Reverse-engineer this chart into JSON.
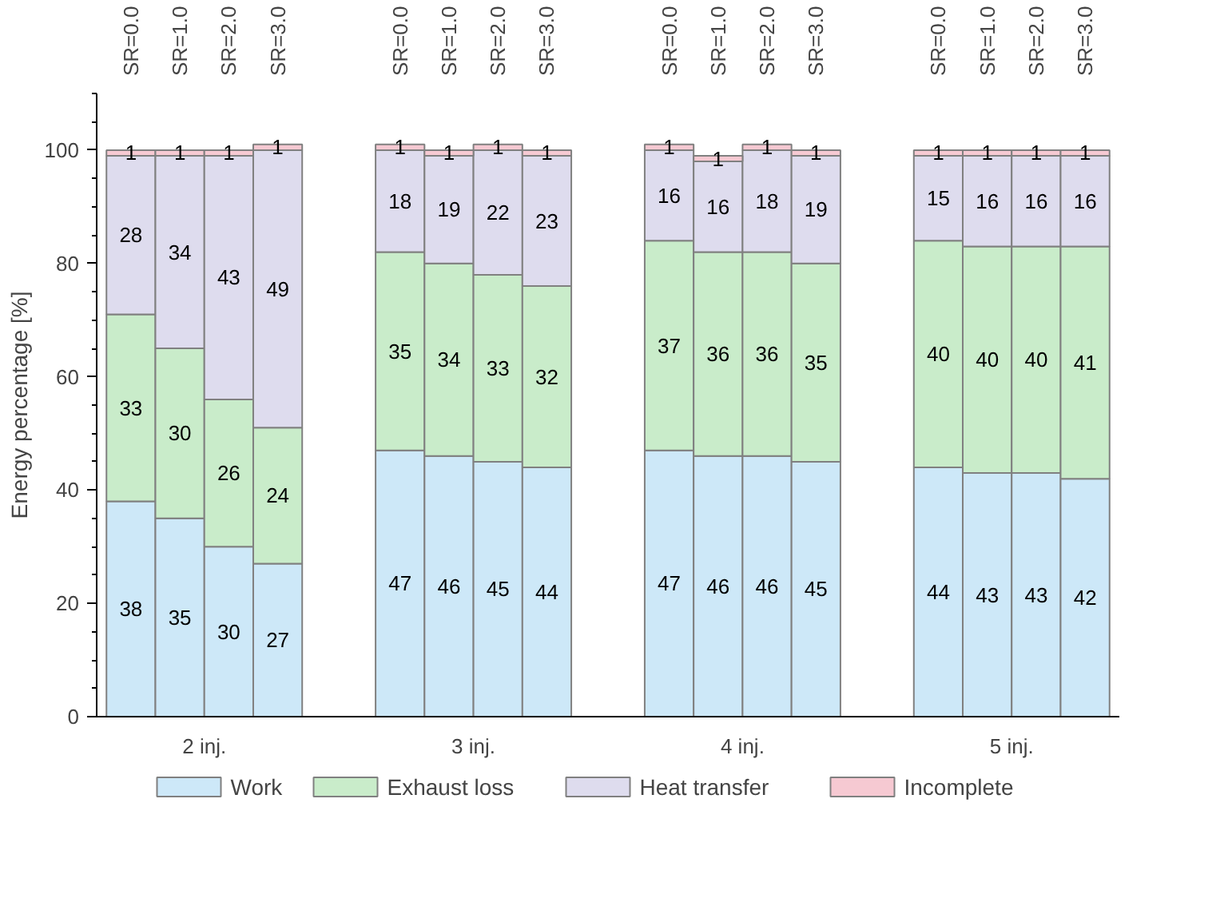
{
  "chart_data": {
    "type": "bar",
    "stacked": true,
    "ylabel": "Energy percentage [%]",
    "categories": [
      "SR=0.0",
      "SR=1.0",
      "SR=2.0",
      "SR=3.0",
      "SR=0.0",
      "SR=1.0",
      "SR=2.0",
      "SR=3.0",
      "SR=0.0",
      "SR=1.0",
      "SR=2.0",
      "SR=3.0",
      "SR=0.0",
      "SR=1.0",
      "SR=2.0",
      "SR=3.0"
    ],
    "annotations": [
      "2 inj.",
      "3 inj.",
      "4 inj.",
      "5 inj."
    ],
    "ylim": [
      0,
      110
    ],
    "yticks": [
      0,
      20,
      40,
      60,
      80,
      100
    ],
    "series": [
      {
        "name": "Work",
        "color": "#cde8f8",
        "values": [
          38,
          35,
          30,
          27,
          47,
          46,
          45,
          44,
          47,
          46,
          46,
          45,
          44,
          43,
          43,
          42
        ]
      },
      {
        "name": "Exhaust loss",
        "color": "#c9ecca",
        "values": [
          33,
          30,
          26,
          24,
          35,
          34,
          33,
          32,
          37,
          36,
          36,
          35,
          40,
          40,
          40,
          41
        ]
      },
      {
        "name": "Heat transfer",
        "color": "#dedcee",
        "values": [
          28,
          34,
          43,
          49,
          18,
          19,
          22,
          23,
          16,
          16,
          18,
          19,
          15,
          16,
          16,
          16
        ]
      },
      {
        "name": "Incomplete",
        "color": "#f6c9d2",
        "values": [
          1,
          1,
          1,
          1,
          1,
          1,
          1,
          1,
          1,
          1,
          1,
          1,
          1,
          1,
          1,
          1
        ]
      }
    ],
    "data_labels": true,
    "legend": "bottom",
    "grid": false
  }
}
